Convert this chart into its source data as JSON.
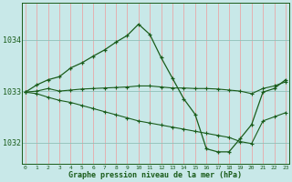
{
  "bg_color": "#c8e8e8",
  "grid_v_color": "#e8a8a8",
  "grid_h_color": "#90c0b8",
  "line_color": "#1a5c1a",
  "xlabel": "Graphe pression niveau de la mer (hPa)",
  "xlim": [
    -0.3,
    23.3
  ],
  "ylim": [
    1031.58,
    1034.72
  ],
  "yticks": [
    1032,
    1033,
    1034
  ],
  "xticks": [
    0,
    1,
    2,
    3,
    4,
    5,
    6,
    7,
    8,
    9,
    10,
    11,
    12,
    13,
    14,
    15,
    16,
    17,
    18,
    19,
    20,
    21,
    22,
    23
  ],
  "s_peak": [
    1032.98,
    1033.12,
    1033.22,
    1033.28,
    1033.45,
    1033.55,
    1033.68,
    1033.8,
    1033.95,
    1034.08,
    1034.3,
    1034.1,
    1033.65,
    1033.25,
    1032.85,
    1032.55,
    1031.88,
    1031.82,
    1031.82,
    1032.08,
    1032.35,
    1032.98,
    1033.05,
    1033.22
  ],
  "s_flat": [
    1032.98,
    1033.0,
    1033.05,
    1033.0,
    1033.02,
    1033.04,
    1033.05,
    1033.06,
    1033.07,
    1033.08,
    1033.1,
    1033.1,
    1033.08,
    1033.06,
    1033.06,
    1033.05,
    1033.05,
    1033.04,
    1033.02,
    1033.0,
    1032.95,
    1033.05,
    1033.1,
    1033.18
  ],
  "s_decline": [
    1032.98,
    1032.95,
    1032.88,
    1032.82,
    1032.78,
    1032.72,
    1032.66,
    1032.6,
    1032.54,
    1032.48,
    1032.42,
    1032.38,
    1032.34,
    1032.3,
    1032.26,
    1032.22,
    1032.18,
    1032.14,
    1032.1,
    1032.02,
    1031.98,
    1032.42,
    1032.5,
    1032.58
  ],
  "xlabel_fontsize": 6.0,
  "ytick_fontsize": 6.0,
  "xtick_fontsize": 4.5
}
